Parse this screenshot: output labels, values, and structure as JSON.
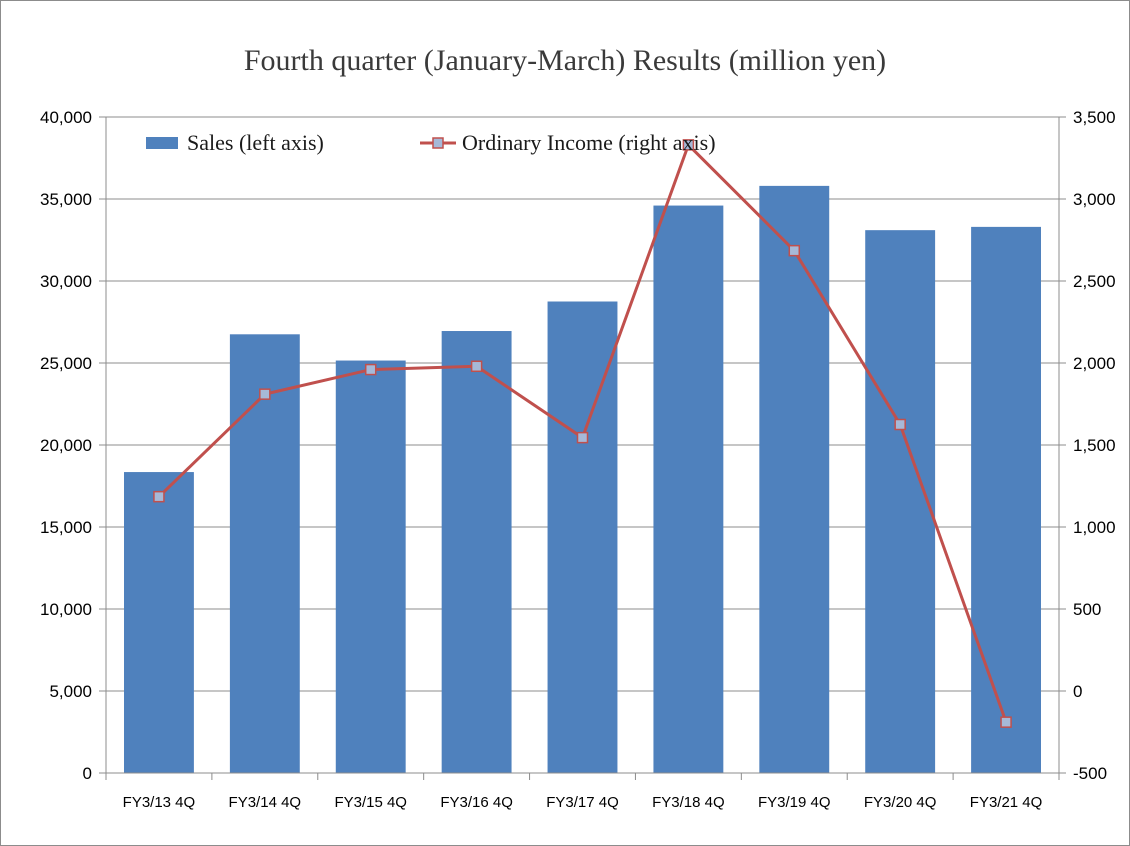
{
  "chart_data": {
    "type": "bar",
    "title": "Fourth quarter (January-March) Results (million yen)",
    "categories": [
      "FY3/13 4Q",
      "FY3/14 4Q",
      "FY3/15 4Q",
      "FY3/16 4Q",
      "FY3/17 4Q",
      "FY3/18 4Q",
      "FY3/19 4Q",
      "FY3/20 4Q",
      "FY3/21 4Q"
    ],
    "series": [
      {
        "name": "Sales (left axis)",
        "type": "bar",
        "axis": "left",
        "color": "#4f81bd",
        "values": [
          18350,
          26750,
          25150,
          26950,
          28750,
          34600,
          35800,
          33100,
          33300
        ]
      },
      {
        "name": "Ordinary Income (right axis)",
        "type": "line",
        "axis": "right",
        "color": "#c0504d",
        "marker_color": "#a6b9d8",
        "values": [
          1185,
          1810,
          1960,
          1980,
          1545,
          3330,
          2685,
          1625,
          -190
        ]
      }
    ],
    "ylim_left": [
      0,
      40000
    ],
    "ylim_right": [
      -500,
      3500
    ],
    "yticks_left": [
      "0",
      "5,000",
      "10,000",
      "15,000",
      "20,000",
      "25,000",
      "30,000",
      "35,000",
      "40,000"
    ],
    "yticks_right": [
      "-500",
      "0",
      "500",
      "1,000",
      "1,500",
      "2,000",
      "2,500",
      "3,000",
      "3,500"
    ],
    "right_negative_tick_color": "#ff0000",
    "grid": true,
    "legend_position": "top-left"
  }
}
